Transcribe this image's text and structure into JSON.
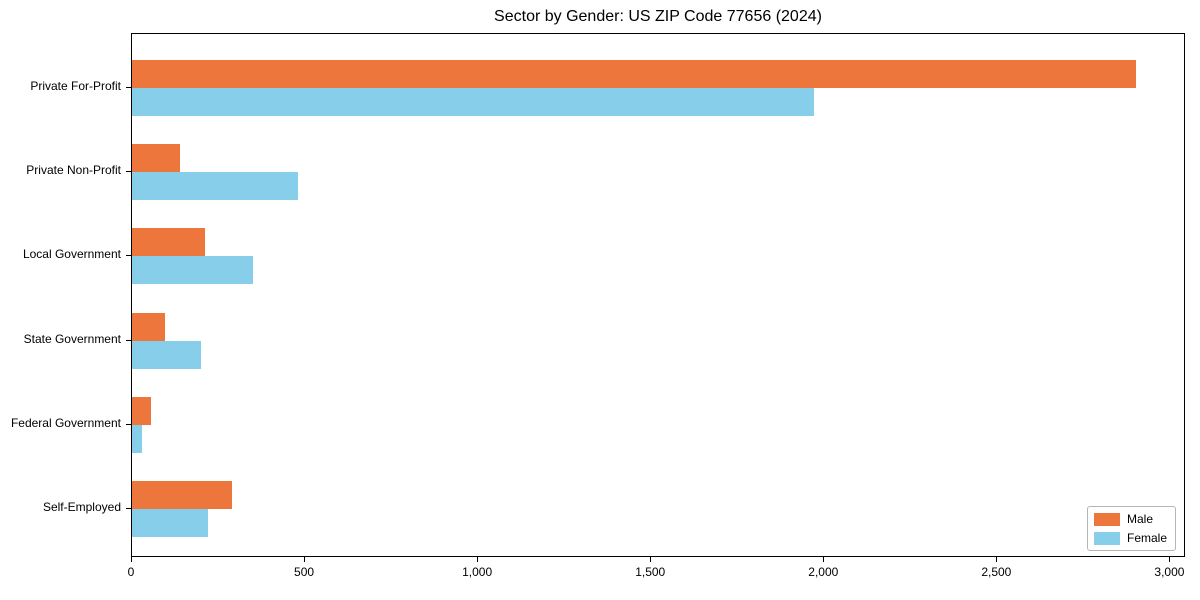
{
  "title": "Sector by Gender: US ZIP Code 77656 (2024)",
  "colors": {
    "male": "#ec763b",
    "female": "#87ceeb",
    "axis": "#000000",
    "legend_border": "#b5b5b5",
    "background": "#ffffff"
  },
  "legend": {
    "position": "lower right",
    "entries": [
      "Male",
      "Female"
    ]
  },
  "chart_data": {
    "type": "bar",
    "orientation": "horizontal",
    "title": "Sector by Gender: US ZIP Code 77656 (2024)",
    "categories": [
      "Private For-Profit",
      "Private Non-Profit",
      "Local Government",
      "State Government",
      "Federal Government",
      "Self-Employed"
    ],
    "series": [
      {
        "name": "Male",
        "color": "#ec763b",
        "values": [
          2900,
          140,
          210,
          95,
          55,
          290
        ]
      },
      {
        "name": "Female",
        "color": "#87ceeb",
        "values": [
          1970,
          480,
          350,
          200,
          30,
          220
        ]
      }
    ],
    "xlabel": "",
    "ylabel": "",
    "xlim": [
      0,
      3045
    ],
    "x_tick_values": [
      0,
      500,
      1000,
      1500,
      2000,
      2500,
      3000
    ],
    "x_tick_labels": [
      "0",
      "500",
      "1,000",
      "1,500",
      "2,000",
      "2,500",
      "3,000"
    ],
    "grid": false,
    "legend_position": "lower right"
  }
}
